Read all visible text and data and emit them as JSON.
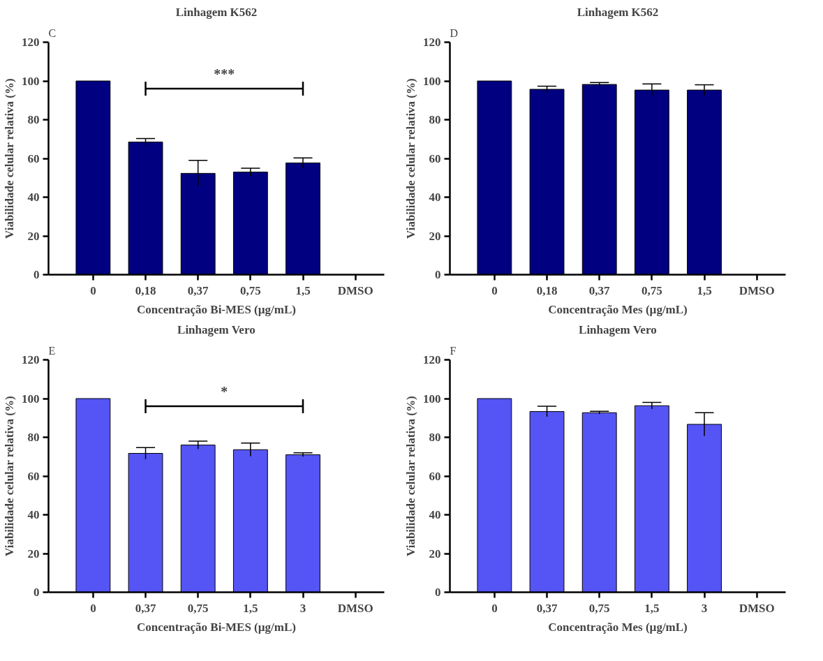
{
  "chart_data": [
    {
      "type": "bar",
      "title": "Linhagem K562",
      "xlabel": "Concentração Bi-MES (µg/mL)",
      "ylabel": "Viabilidade celular relativa (%)",
      "categories": [
        "0",
        "0,18",
        "0,37",
        "0,75",
        "1,5",
        "DMSO"
      ],
      "values": [
        100,
        68.5,
        52.3,
        53,
        57.7,
        null
      ],
      "errors": [
        null,
        1.8,
        6.7,
        2,
        2.6,
        null
      ],
      "color": "#000080",
      "ylim": [
        0,
        120
      ],
      "yticks": [
        0,
        20,
        40,
        60,
        80,
        100,
        120
      ],
      "grid": false,
      "annotations": [
        "C",
        "***"
      ]
    },
    {
      "type": "bar",
      "title": "Linhagem K562",
      "xlabel": "Concentração Mes (µg/mL)",
      "ylabel": "Viabilidade celular relativa (%)",
      "categories": [
        "0",
        "0,18",
        "0,37",
        "0,75",
        "1,5",
        "DMSO"
      ],
      "values": [
        100,
        95.7,
        98.2,
        95.3,
        95.3,
        null
      ],
      "errors": [
        null,
        1.6,
        1,
        3.2,
        2.7,
        null
      ],
      "color": "#000080",
      "ylim": [
        0,
        120
      ],
      "yticks": [
        0,
        20,
        40,
        60,
        80,
        100,
        120
      ],
      "grid": false,
      "annotations": [
        "D"
      ]
    },
    {
      "type": "bar",
      "title": "Linhagem Vero",
      "xlabel": "Concentração Bi-MES (µg/mL)",
      "ylabel": "Viabilidade celular relativa (%)",
      "categories": [
        "0",
        "0,37",
        "0,75",
        "1,5",
        "3",
        "DMSO"
      ],
      "values": [
        100,
        71.7,
        76,
        73.6,
        71,
        null
      ],
      "errors": [
        null,
        3,
        2,
        3.4,
        1,
        null
      ],
      "color": "#5555f5",
      "ylim": [
        0,
        120
      ],
      "yticks": [
        0,
        20,
        40,
        60,
        80,
        100,
        120
      ],
      "grid": false,
      "annotations": [
        "E",
        "*"
      ]
    },
    {
      "type": "bar",
      "title": "Linhagem Vero",
      "xlabel": "Concentração Mes (µg/mL)",
      "ylabel": "Viabilidade celular relativa (%)",
      "categories": [
        "0",
        "0,37",
        "0,75",
        "1,5",
        "3",
        "DMSO"
      ],
      "values": [
        100,
        93.3,
        92.7,
        96.3,
        86.7,
        null
      ],
      "errors": [
        null,
        2.7,
        0.7,
        1.7,
        6,
        null
      ],
      "color": "#5555f5",
      "ylim": [
        0,
        120
      ],
      "yticks": [
        0,
        20,
        40,
        60,
        80,
        100,
        120
      ],
      "grid": false,
      "annotations": [
        "F"
      ]
    }
  ]
}
